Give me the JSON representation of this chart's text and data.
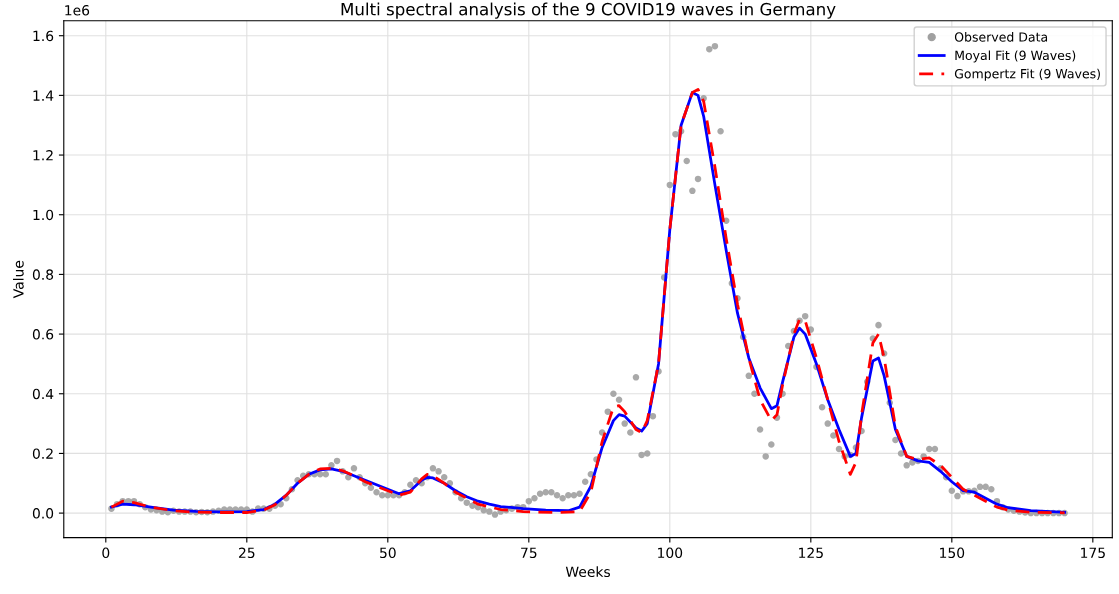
{
  "chart_data": {
    "type": "scatter",
    "title": "Multi spectral analysis of the 9 COVID19 waves in Germany",
    "xlabel": "Weeks",
    "ylabel": "Value",
    "annotations": [
      "1e6"
    ],
    "xlim": [
      -7.45,
      178.45
    ],
    "xticks": [
      0,
      25,
      50,
      75,
      100,
      125,
      150,
      175
    ],
    "ylim": [
      -0.082,
      1.65
    ],
    "yticks": [
      {
        "value": 0,
        "label": "0.0"
      },
      {
        "value": 0.2,
        "label": "0.2"
      },
      {
        "value": 0.4,
        "label": "0.4"
      },
      {
        "value": 0.6,
        "label": "0.6"
      },
      {
        "value": 0.8,
        "label": "0.8"
      },
      {
        "value": 1.0,
        "label": "1.0"
      },
      {
        "value": 1.2,
        "label": "1.2"
      },
      {
        "value": 1.4,
        "label": "1.4"
      },
      {
        "value": 1.6,
        "label": "1.6"
      }
    ],
    "grid": true,
    "legend": "top right",
    "series": [
      {
        "name": "Observed Data",
        "marker": "circle",
        "color": "#a0a0a0",
        "x": [
          1,
          2,
          3,
          4,
          5,
          6,
          7,
          8,
          9,
          10,
          11,
          12,
          13,
          14,
          15,
          16,
          17,
          18,
          19,
          20,
          21,
          22,
          23,
          24,
          25,
          26,
          27,
          28,
          29,
          30,
          31,
          32,
          33,
          34,
          35,
          36,
          37,
          38,
          39,
          40,
          41,
          42,
          43,
          44,
          45,
          46,
          47,
          48,
          49,
          50,
          51,
          52,
          53,
          54,
          55,
          56,
          57,
          58,
          59,
          60,
          61,
          62,
          63,
          64,
          65,
          66,
          67,
          68,
          69,
          70,
          71,
          72,
          73,
          74,
          75,
          76,
          77,
          78,
          79,
          80,
          81,
          82,
          83,
          84,
          85,
          86,
          87,
          88,
          89,
          90,
          91,
          92,
          93,
          94,
          95,
          96,
          97,
          98,
          99,
          100,
          101,
          102,
          103,
          104,
          105,
          106,
          107,
          108,
          109,
          110,
          111,
          112,
          113,
          114,
          115,
          116,
          117,
          118,
          119,
          120,
          121,
          122,
          123,
          124,
          125,
          126,
          127,
          128,
          129,
          130,
          131,
          132,
          133,
          134,
          135,
          136,
          137,
          138,
          139,
          140,
          141,
          142,
          143,
          144,
          145,
          146,
          147,
          148,
          149,
          150,
          151,
          152,
          153,
          154,
          155,
          156,
          157,
          158,
          159,
          160,
          161,
          162,
          163,
          164,
          165,
          166,
          167,
          168,
          169,
          170
        ],
        "values": [
          0.015,
          0.03,
          0.04,
          0.04,
          0.04,
          0.03,
          0.02,
          0.012,
          0.01,
          0.005,
          0.003,
          0.008,
          0.005,
          0.005,
          0.005,
          0.003,
          0.004,
          0.003,
          0.005,
          0.008,
          0.012,
          0.012,
          0.012,
          0.012,
          0.012,
          0.005,
          0.015,
          0.015,
          0.015,
          0.025,
          0.03,
          0.05,
          0.08,
          0.11,
          0.125,
          0.13,
          0.13,
          0.13,
          0.13,
          0.16,
          0.175,
          0.14,
          0.12,
          0.15,
          0.12,
          0.1,
          0.085,
          0.07,
          0.06,
          0.06,
          0.06,
          0.06,
          0.07,
          0.095,
          0.11,
          0.1,
          0.12,
          0.15,
          0.14,
          0.12,
          0.1,
          0.07,
          0.05,
          0.035,
          0.025,
          0.02,
          0.01,
          0.005,
          -0.005,
          0.005,
          0.01,
          0.015,
          0.02,
          0.02,
          0.04,
          0.05,
          0.065,
          0.07,
          0.07,
          0.06,
          0.05,
          0.06,
          0.06,
          0.065,
          0.105,
          0.13,
          0.18,
          0.27,
          0.34,
          0.4,
          0.38,
          0.3,
          0.27,
          0.455,
          0.195,
          0.2,
          0.325,
          0.475,
          0.79,
          1.1,
          1.27,
          1.28,
          1.18,
          1.08,
          1.12,
          1.39,
          1.555,
          1.565,
          1.28,
          0.98,
          0.77,
          0.72,
          0.59,
          0.46,
          0.4,
          0.28,
          0.19,
          0.23,
          0.32,
          0.4,
          0.56,
          0.61,
          0.645,
          0.66,
          0.615,
          0.49,
          0.355,
          0.3,
          0.26,
          0.215,
          0.19,
          0.195,
          0.22,
          0.275,
          0.44,
          0.585,
          0.63,
          0.535,
          0.37,
          0.245,
          0.2,
          0.16,
          0.17,
          0.175,
          0.19,
          0.215,
          0.215,
          0.15,
          0.12,
          0.075,
          0.057,
          0.073,
          0.073,
          0.075,
          0.088,
          0.088,
          0.08,
          0.04,
          0.02,
          0.012,
          0.008,
          0.005,
          0.002,
          0,
          0,
          0,
          0,
          0,
          0,
          0
        ]
      },
      {
        "name": "Moyal Fit (9 Waves)",
        "type": "line",
        "line_style": "solid",
        "color": "#0000ff",
        "x": [
          1,
          3,
          5,
          8,
          12,
          16,
          20,
          25,
          28,
          30,
          32,
          34,
          36,
          38,
          40,
          42,
          44,
          46,
          48,
          50,
          52,
          54,
          56,
          57,
          58,
          60,
          62,
          64,
          66,
          68,
          70,
          74,
          78,
          82,
          84,
          86,
          88,
          90,
          91,
          92,
          94,
          95,
          96,
          98,
          100,
          102,
          104,
          105,
          106,
          108,
          110,
          112,
          114,
          116,
          118,
          119,
          120,
          122,
          123,
          124,
          126,
          128,
          130,
          132,
          133,
          134,
          136,
          137,
          138,
          140,
          142,
          144,
          146,
          148,
          150,
          152,
          154,
          156,
          158,
          160,
          164,
          170
        ],
        "values": [
          0.02,
          0.03,
          0.028,
          0.02,
          0.01,
          0.006,
          0.004,
          0.005,
          0.012,
          0.03,
          0.06,
          0.1,
          0.13,
          0.145,
          0.148,
          0.14,
          0.125,
          0.11,
          0.095,
          0.08,
          0.065,
          0.075,
          0.11,
          0.12,
          0.118,
          0.1,
          0.075,
          0.055,
          0.04,
          0.03,
          0.022,
          0.015,
          0.01,
          0.008,
          0.02,
          0.09,
          0.22,
          0.31,
          0.33,
          0.325,
          0.285,
          0.275,
          0.3,
          0.5,
          0.95,
          1.3,
          1.41,
          1.4,
          1.33,
          1.1,
          0.88,
          0.67,
          0.52,
          0.42,
          0.35,
          0.36,
          0.44,
          0.59,
          0.62,
          0.6,
          0.5,
          0.38,
          0.28,
          0.19,
          0.2,
          0.32,
          0.51,
          0.52,
          0.46,
          0.28,
          0.19,
          0.175,
          0.17,
          0.14,
          0.105,
          0.075,
          0.07,
          0.05,
          0.03,
          0.018,
          0.008,
          0.003
        ]
      },
      {
        "name": "Gompertz Fit (9 Waves)",
        "type": "line",
        "line_style": "dashed",
        "color": "#ff0000",
        "x": [
          1,
          3,
          5,
          8,
          12,
          16,
          20,
          25,
          28,
          30,
          32,
          34,
          36,
          38,
          40,
          42,
          44,
          46,
          48,
          50,
          52,
          54,
          56,
          57,
          58,
          60,
          62,
          66,
          70,
          74,
          80,
          84,
          86,
          88,
          90,
          91,
          92,
          94,
          95,
          96,
          98,
          100,
          102,
          104,
          105,
          106,
          108,
          110,
          112,
          114,
          116,
          118,
          119,
          120,
          122,
          123,
          124,
          126,
          128,
          130,
          132,
          133,
          134,
          136,
          137,
          138,
          140,
          142,
          144,
          146,
          148,
          150,
          152,
          154,
          156,
          158,
          160,
          164,
          170
        ],
        "values": [
          0.02,
          0.04,
          0.035,
          0.02,
          0.008,
          0.003,
          0.002,
          0.002,
          0.01,
          0.028,
          0.06,
          0.1,
          0.13,
          0.148,
          0.15,
          0.142,
          0.125,
          0.105,
          0.09,
          0.075,
          0.06,
          0.07,
          0.115,
          0.13,
          0.125,
          0.1,
          0.07,
          0.03,
          0.012,
          0.005,
          0.002,
          0.005,
          0.07,
          0.24,
          0.355,
          0.36,
          0.34,
          0.28,
          0.27,
          0.31,
          0.5,
          0.95,
          1.3,
          1.41,
          1.42,
          1.38,
          1.16,
          0.92,
          0.7,
          0.52,
          0.38,
          0.31,
          0.33,
          0.43,
          0.6,
          0.65,
          0.645,
          0.52,
          0.38,
          0.24,
          0.13,
          0.17,
          0.33,
          0.57,
          0.6,
          0.52,
          0.29,
          0.19,
          0.18,
          0.185,
          0.16,
          0.12,
          0.08,
          0.06,
          0.04,
          0.02,
          0.01,
          0.003,
          0.001
        ]
      }
    ]
  }
}
